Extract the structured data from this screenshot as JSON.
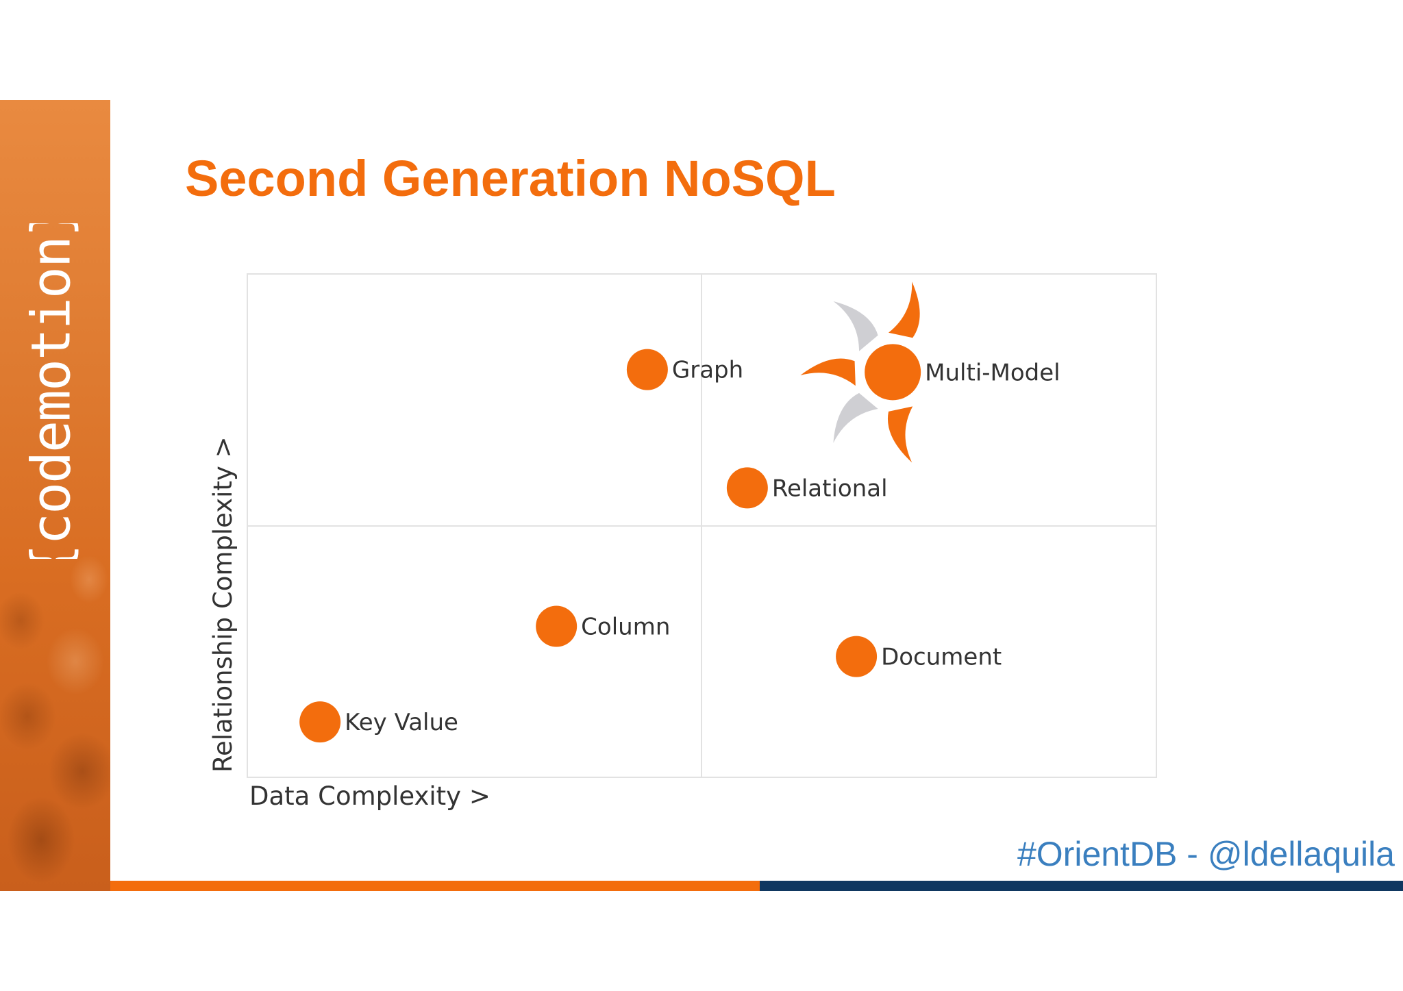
{
  "slide": {
    "title": "Second Generation NoSQL",
    "footer_hashtag": "#OrientDB - @ldellaquila",
    "brand_logo_text": "{codemotion}",
    "colors": {
      "accent": "#f36d0d",
      "navy": "#0f3760",
      "link_blue": "#3a7fbf",
      "star_gray": "#cfcfd3"
    }
  },
  "chart_data": {
    "type": "scatter",
    "title": "",
    "xlabel": "Data Complexity >",
    "ylabel": "Relationship Complexity >",
    "xlim": [
      0,
      10
    ],
    "ylim": [
      0,
      10
    ],
    "grid": "quadrants",
    "points": [
      {
        "label": "Key Value",
        "x": 0.8,
        "y": 1.1
      },
      {
        "label": "Column",
        "x": 3.4,
        "y": 3.0
      },
      {
        "label": "Graph",
        "x": 4.4,
        "y": 8.1
      },
      {
        "label": "Relational",
        "x": 5.5,
        "y": 5.75
      },
      {
        "label": "Document",
        "x": 6.7,
        "y": 2.4
      },
      {
        "label": "Multi-Model",
        "x": 7.1,
        "y": 8.05,
        "highlight": true
      }
    ]
  }
}
